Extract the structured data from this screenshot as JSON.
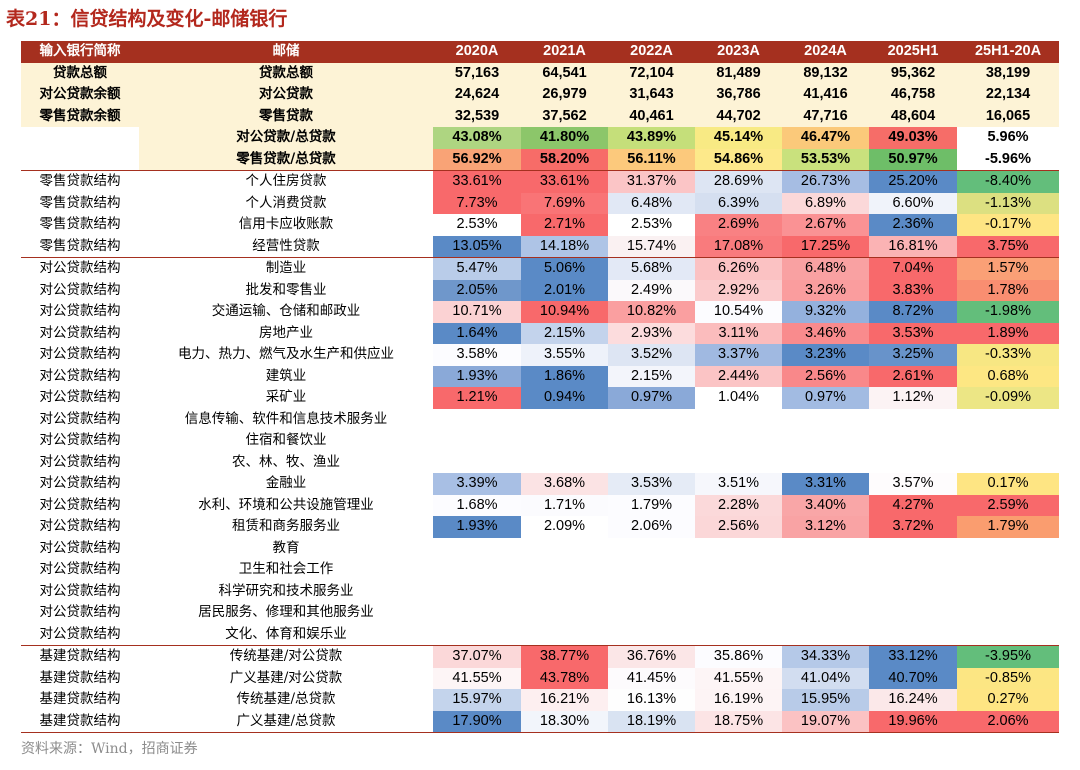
{
  "title": "表21：信贷结构及变化-邮储银行",
  "source": "资料来源：Wind，招商证券",
  "header": [
    "输入银行简称",
    "邮储",
    "2020A",
    "2021A",
    "2022A",
    "2023A",
    "2024A",
    "2025H1",
    "25H1-20A"
  ],
  "rows": [
    {
      "group": "sum",
      "cells": [
        "贷款总额",
        "贷款总额",
        "57,163",
        "64,541",
        "72,104",
        "81,489",
        "89,132",
        "95,362",
        "38,199"
      ]
    },
    {
      "group": "sum",
      "cells": [
        "对公贷款余额",
        "对公贷款",
        "24,624",
        "26,979",
        "31,643",
        "36,786",
        "41,416",
        "46,758",
        "22,134"
      ]
    },
    {
      "group": "sum",
      "cells": [
        "零售贷款余额",
        "零售贷款",
        "32,539",
        "37,562",
        "40,461",
        "44,702",
        "47,716",
        "48,604",
        "16,065"
      ]
    },
    {
      "group": "ratio",
      "cells": [
        "",
        "对公贷款/总贷款",
        "43.08%",
        "41.80%",
        "43.89%",
        "45.14%",
        "46.47%",
        "49.03%",
        "5.96%"
      ],
      "colors": [
        "#aed581",
        "#8cc66a",
        "#c5df7a",
        "#f8ea84",
        "#fbc97a",
        "#f66d68",
        "#ffffff"
      ]
    },
    {
      "group": "ratio",
      "cells": [
        "",
        "零售贷款/总贷款",
        "56.92%",
        "58.20%",
        "56.11%",
        "54.86%",
        "53.53%",
        "50.97%",
        "-5.96%"
      ],
      "colors": [
        "#f9a376",
        "#f76c68",
        "#fcc97c",
        "#fde98a",
        "#c9e17d",
        "#6ebe68",
        "#ffffff"
      ]
    },
    {
      "group": "retail",
      "cells": [
        "零售贷款结构",
        "个人住房贷款",
        "33.61%",
        "33.61%",
        "31.37%",
        "28.69%",
        "26.73%",
        "25.20%",
        "-8.40%"
      ],
      "colors": [
        "#f8696b",
        "#f8696b",
        "#fbc5c6",
        "#dde5f3",
        "#a6bde3",
        "#5a8ac6",
        "#63be7b"
      ]
    },
    {
      "group": "retail",
      "cells": [
        "零售贷款结构",
        "个人消费贷款",
        "7.73%",
        "7.69%",
        "6.48%",
        "6.39%",
        "6.89%",
        "6.60%",
        "-1.13%"
      ],
      "colors": [
        "#f8696b",
        "#f97476",
        "#e1e8f5",
        "#d5dff0",
        "#fbd8d9",
        "#f0f3fa",
        "#dce081"
      ]
    },
    {
      "group": "retail",
      "cells": [
        "零售贷款结构",
        "信用卡应收账款",
        "2.53%",
        "2.71%",
        "2.53%",
        "2.69%",
        "2.67%",
        "2.36%",
        "-0.17%"
      ],
      "colors": [
        "#ffffff",
        "#f8696b",
        "#ffffff",
        "#f98183",
        "#fa9294",
        "#5a8ac6",
        "#fee583"
      ]
    },
    {
      "group": "retail",
      "cells": [
        "零售贷款结构",
        "经营性贷款",
        "13.05%",
        "14.18%",
        "15.74%",
        "17.08%",
        "17.25%",
        "16.81%",
        "3.75%"
      ],
      "colors": [
        "#5a8ac6",
        "#aec4e6",
        "#faf1f2",
        "#f97b7d",
        "#f8696b",
        "#fbb3b4",
        "#f8696b"
      ]
    },
    {
      "group": "corp",
      "cells": [
        "对公贷款结构",
        "制造业",
        "5.47%",
        "5.06%",
        "5.68%",
        "6.26%",
        "6.48%",
        "7.04%",
        "1.57%"
      ],
      "colors": [
        "#b9cce9",
        "#5a8ac6",
        "#e3e9f6",
        "#fbc2c3",
        "#f9a1a2",
        "#f8696b",
        "#faa076"
      ]
    },
    {
      "group": "corp",
      "cells": [
        "对公贷款结构",
        "批发和零售业",
        "2.05%",
        "2.01%",
        "2.49%",
        "2.92%",
        "3.26%",
        "3.83%",
        "1.78%"
      ],
      "colors": [
        "#6f97cb",
        "#5a8ac6",
        "#fbf9fb",
        "#fbcbcc",
        "#fa9d9e",
        "#f8696b",
        "#f98e71"
      ]
    },
    {
      "group": "corp",
      "cells": [
        "对公贷款结构",
        "交通运输、仓储和邮政业",
        "10.71%",
        "10.94%",
        "10.82%",
        "10.54%",
        "9.32%",
        "8.72%",
        "-1.98%"
      ],
      "colors": [
        "#fbd2d3",
        "#f8696b",
        "#fa9fa0",
        "#fcfcff",
        "#94b1dd",
        "#5a8ac6",
        "#63be7b"
      ]
    },
    {
      "group": "corp",
      "cells": [
        "对公贷款结构",
        "房地产业",
        "1.64%",
        "2.15%",
        "2.93%",
        "3.11%",
        "3.46%",
        "3.53%",
        "1.89%"
      ],
      "colors": [
        "#5a8ac6",
        "#c3d3ec",
        "#fcdcdd",
        "#fbbcbd",
        "#f98b8d",
        "#f8696b",
        "#f8696b"
      ]
    },
    {
      "group": "corp",
      "cells": [
        "对公贷款结构",
        "电力、热力、燃气及水生产和供应业",
        "3.58%",
        "3.55%",
        "3.52%",
        "3.37%",
        "3.23%",
        "3.25%",
        "-0.33%"
      ],
      "colors": [
        "#fcfcff",
        "#eef2fa",
        "#dde5f3",
        "#a0b9e1",
        "#5a8ac6",
        "#6893ca",
        "#f7e783"
      ]
    },
    {
      "group": "corp",
      "cells": [
        "对公贷款结构",
        "建筑业",
        "1.93%",
        "1.86%",
        "2.15%",
        "2.44%",
        "2.56%",
        "2.61%",
        "0.68%"
      ],
      "colors": [
        "#8aa9d8",
        "#5a8ac6",
        "#f3f5fb",
        "#fbc4c5",
        "#f9888a",
        "#f8696b",
        "#fde783"
      ]
    },
    {
      "group": "corp",
      "cells": [
        "对公贷款结构",
        "采矿业",
        "1.21%",
        "0.94%",
        "0.97%",
        "1.04%",
        "0.97%",
        "1.12%",
        "-0.09%"
      ],
      "colors": [
        "#f8696b",
        "#5a8ac6",
        "#8aa9d8",
        "#ffffff",
        "#a2bbe2",
        "#fcf3f4",
        "#ece685"
      ]
    },
    {
      "group": "corp",
      "cells": [
        "对公贷款结构",
        "信息传输、软件和信息技术服务业",
        "",
        "",
        "",
        "",
        "",
        "",
        ""
      ]
    },
    {
      "group": "corp",
      "cells": [
        "对公贷款结构",
        "住宿和餐饮业",
        "",
        "",
        "",
        "",
        "",
        "",
        ""
      ]
    },
    {
      "group": "corp",
      "cells": [
        "对公贷款结构",
        "农、林、牧、渔业",
        "",
        "",
        "",
        "",
        "",
        "",
        ""
      ]
    },
    {
      "group": "corp",
      "cells": [
        "对公贷款结构",
        "金融业",
        "3.39%",
        "3.68%",
        "3.53%",
        "3.51%",
        "3.31%",
        "3.57%",
        "0.17%"
      ],
      "colors": [
        "#a8bfe4",
        "#fbe3e4",
        "#e5ebf6",
        "#f6f7fc",
        "#5a8ac6",
        "#fefcfd",
        "#fee583"
      ]
    },
    {
      "group": "corp",
      "cells": [
        "对公贷款结构",
        "水利、环境和公共设施管理业",
        "1.68%",
        "1.71%",
        "1.79%",
        "2.28%",
        "3.40%",
        "4.27%",
        "2.59%"
      ],
      "colors": [
        "#fcfcff",
        "#fbfbfe",
        "#fcfcff",
        "#fbd9da",
        "#f9a6a7",
        "#f8696b",
        "#f8696b"
      ]
    },
    {
      "group": "corp",
      "cells": [
        "对公贷款结构",
        "租赁和商务服务业",
        "1.93%",
        "2.09%",
        "2.06%",
        "2.56%",
        "3.12%",
        "3.72%",
        "1.79%"
      ],
      "colors": [
        "#5a8ac6",
        "#ffffff",
        "#fcfcff",
        "#fbd7d8",
        "#f9a3a4",
        "#f8696b",
        "#fa9d6f"
      ]
    },
    {
      "group": "corp",
      "cells": [
        "对公贷款结构",
        "教育",
        "",
        "",
        "",
        "",
        "",
        "",
        ""
      ]
    },
    {
      "group": "corp",
      "cells": [
        "对公贷款结构",
        "卫生和社会工作",
        "",
        "",
        "",
        "",
        "",
        "",
        ""
      ]
    },
    {
      "group": "corp",
      "cells": [
        "对公贷款结构",
        "科学研究和技术服务业",
        "",
        "",
        "",
        "",
        "",
        "",
        ""
      ]
    },
    {
      "group": "corp",
      "cells": [
        "对公贷款结构",
        "居民服务、修理和其他服务业",
        "",
        "",
        "",
        "",
        "",
        "",
        ""
      ]
    },
    {
      "group": "corp",
      "cells": [
        "对公贷款结构",
        "文化、体育和娱乐业",
        "",
        "",
        "",
        "",
        "",
        "",
        ""
      ]
    },
    {
      "group": "infra",
      "cells": [
        "基建贷款结构",
        "传统基建/对公贷款",
        "37.07%",
        "38.77%",
        "36.76%",
        "35.86%",
        "34.33%",
        "33.12%",
        "-3.95%"
      ],
      "colors": [
        "#fbd8d9",
        "#f8696b",
        "#fbe6e7",
        "#fcfcff",
        "#b5c9e8",
        "#5a8ac6",
        "#63be7b"
      ]
    },
    {
      "group": "infra",
      "cells": [
        "基建贷款结构",
        "广义基建/对公贷款",
        "41.55%",
        "43.78%",
        "41.45%",
        "41.55%",
        "41.04%",
        "40.70%",
        "-0.85%"
      ],
      "colors": [
        "#fdf5f6",
        "#f8696b",
        "#fdfbfd",
        "#fdf5f6",
        "#d2ddf0",
        "#5a8ac6",
        "#fce683"
      ]
    },
    {
      "group": "infra",
      "cells": [
        "基建贷款结构",
        "传统基建/总贷款",
        "15.97%",
        "16.21%",
        "16.13%",
        "16.19%",
        "15.95%",
        "16.24%",
        "0.27%"
      ],
      "colors": [
        "#c4d4ec",
        "#fdeff0",
        "#fefefe",
        "#fdf4f5",
        "#b8cbe8",
        "#fbe8e9",
        "#fee583"
      ]
    },
    {
      "group": "infra",
      "cells": [
        "基建贷款结构",
        "广义基建/总贷款",
        "17.90%",
        "18.30%",
        "18.19%",
        "18.75%",
        "19.07%",
        "19.96%",
        "2.06%"
      ],
      "colors": [
        "#5a8ac6",
        "#f2f5fb",
        "#d9e3f2",
        "#fce4e5",
        "#fbc2c3",
        "#f8696b",
        "#f8696b"
      ]
    }
  ]
}
